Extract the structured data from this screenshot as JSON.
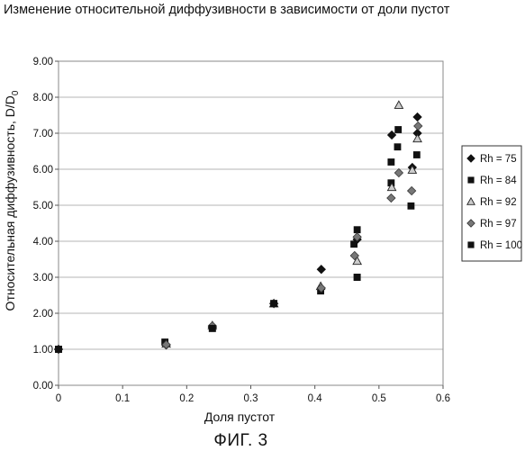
{
  "chart_data": {
    "type": "scatter",
    "title": "Изменение относительной диффузивности в зависимости от доли пустот",
    "xlabel": "Доля пустот",
    "ylabel": "Относительная диффузивность, D/D",
    "ylabel_subscript": "0",
    "xlim": [
      0,
      0.6
    ],
    "ylim": [
      0,
      9
    ],
    "x_ticks": [
      "0",
      "0.1",
      "0.2",
      "0.3",
      "0.4",
      "0.5",
      "0.6"
    ],
    "y_ticks": [
      "0.00",
      "1.00",
      "2.00",
      "3.00",
      "4.00",
      "5.00",
      "6.00",
      "7.00",
      "8.00",
      "9.00"
    ],
    "grid": "horizontal",
    "legend_position": "right",
    "series": [
      {
        "name": "Rh = 75",
        "marker": "diamond",
        "color": "#111111",
        "points": [
          [
            0.0,
            1.0
          ],
          [
            0.168,
            1.12
          ],
          [
            0.24,
            1.62
          ],
          [
            0.336,
            2.27
          ],
          [
            0.41,
            3.22
          ],
          [
            0.466,
            4.05
          ],
          [
            0.52,
            6.95
          ],
          [
            0.552,
            6.05
          ],
          [
            0.56,
            7.0
          ],
          [
            0.56,
            7.45
          ]
        ]
      },
      {
        "name": "Rh = 84",
        "marker": "square",
        "color": "#111111",
        "points": [
          [
            0.0,
            1.0
          ],
          [
            0.166,
            1.2
          ],
          [
            0.24,
            1.58
          ],
          [
            0.336,
            2.27
          ],
          [
            0.409,
            2.62
          ],
          [
            0.461,
            3.92
          ],
          [
            0.466,
            4.32
          ],
          [
            0.466,
            3.0
          ],
          [
            0.519,
            6.2
          ],
          [
            0.519,
            5.62
          ],
          [
            0.529,
            6.62
          ],
          [
            0.53,
            7.1
          ],
          [
            0.55,
            4.98
          ],
          [
            0.559,
            6.4
          ]
        ]
      },
      {
        "name": "Rh = 92",
        "marker": "triangle",
        "color": "#cccccc",
        "points": [
          [
            0.168,
            1.15
          ],
          [
            0.24,
            1.66
          ],
          [
            0.336,
            2.27
          ],
          [
            0.409,
            2.75
          ],
          [
            0.466,
            3.45
          ],
          [
            0.52,
            5.5
          ],
          [
            0.531,
            7.78
          ],
          [
            0.552,
            5.98
          ],
          [
            0.56,
            6.85
          ]
        ]
      },
      {
        "name": "Rh = 97",
        "marker": "diamond",
        "color": "#777777",
        "points": [
          [
            0.168,
            1.13
          ],
          [
            0.24,
            1.65
          ],
          [
            0.336,
            2.27
          ],
          [
            0.41,
            2.7
          ],
          [
            0.462,
            3.6
          ],
          [
            0.466,
            4.12
          ],
          [
            0.519,
            5.2
          ],
          [
            0.531,
            5.9
          ],
          [
            0.551,
            5.4
          ],
          [
            0.561,
            7.2
          ]
        ]
      },
      {
        "name": "Rh = 100",
        "marker": "square",
        "color": "#111111",
        "points": [
          [
            0.0,
            1.0
          ],
          [
            0.24,
            1.58
          ],
          [
            0.336,
            2.27
          ],
          [
            0.466,
            3.0
          ]
        ]
      }
    ]
  },
  "caption": "ФИГ. 3"
}
